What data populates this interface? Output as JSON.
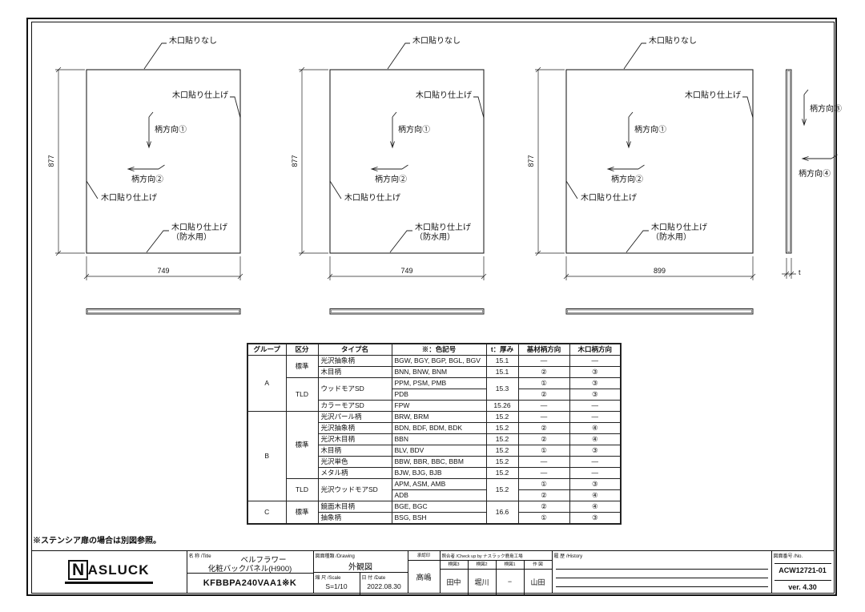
{
  "sheet": {
    "note": "※ステンシア扉の場合は別図参照。"
  },
  "panels": [
    {
      "height": "877",
      "width": "749",
      "edge_top": "木口貼りなし",
      "edge_right": "木口貼り仕上げ",
      "edge_left": "木口貼り仕上げ",
      "edge_bottom": "木口貼り仕上げ",
      "edge_bottom_note": "（防水用）",
      "dir_v": "柄方向①",
      "dir_h": "柄方向②"
    },
    {
      "height": "877",
      "width": "749",
      "edge_top": "木口貼りなし",
      "edge_right": "木口貼り仕上げ",
      "edge_left": "木口貼り仕上げ",
      "edge_bottom": "木口貼り仕上げ",
      "edge_bottom_note": "（防水用）",
      "dir_v": "柄方向①",
      "dir_h": "柄方向②"
    },
    {
      "height": "877",
      "width": "899",
      "edge_top": "木口貼りなし",
      "edge_right": "木口貼り仕上げ",
      "edge_left": "木口貼り仕上げ",
      "edge_bottom": "木口貼り仕上げ",
      "edge_bottom_note": "（防水用）",
      "dir_v": "柄方向①",
      "dir_h": "柄方向②"
    }
  ],
  "side_view": {
    "dir_v": "柄方向③",
    "dir_h": "柄方向④",
    "thickness": "t"
  },
  "spec_table": {
    "headers": [
      "グループ",
      "区分",
      "タイプ名",
      "※：色記号",
      "t：厚み",
      "基材柄方向",
      "木口柄方向"
    ],
    "rows": [
      [
        {
          "t": "A",
          "rs": 5
        },
        {
          "t": "標準",
          "rs": 2
        },
        {
          "t": "光沢抽象柄",
          "al": 1
        },
        {
          "t": "BGW, BGY, BGP, BGL, BGV",
          "al": 1
        },
        {
          "t": "15.1"
        },
        {
          "t": "—"
        },
        {
          "t": "—"
        }
      ],
      [
        {
          "t": "木目柄",
          "al": 1
        },
        {
          "t": "BNN, BNW, BNM",
          "al": 1
        },
        {
          "t": "15.1"
        },
        {
          "t": "②"
        },
        {
          "t": "③"
        }
      ],
      [
        {
          "t": "TLD",
          "rs": 3
        },
        {
          "t": "ウッドモアSD",
          "rs": 2,
          "al": 1
        },
        {
          "t": "PPM, PSM, PMB",
          "al": 1
        },
        {
          "t": "15.3",
          "rs": 2
        },
        {
          "t": "①"
        },
        {
          "t": "③"
        }
      ],
      [
        {
          "t": "PDB",
          "al": 1
        },
        {
          "t": "②"
        },
        {
          "t": "③"
        }
      ],
      [
        {
          "t": "カラーモアSD",
          "al": 1
        },
        {
          "t": "FPW",
          "al": 1
        },
        {
          "t": "15.26"
        },
        {
          "t": "—"
        },
        {
          "t": "—"
        }
      ],
      [
        {
          "t": "B",
          "rs": 8
        },
        {
          "t": "標準",
          "rs": 6
        },
        {
          "t": "光沢パール柄",
          "al": 1
        },
        {
          "t": "BRW, BRM",
          "al": 1
        },
        {
          "t": "15.2"
        },
        {
          "t": "—"
        },
        {
          "t": "—"
        }
      ],
      [
        {
          "t": "光沢抽象柄",
          "al": 1
        },
        {
          "t": "BDN, BDF, BDM, BDK",
          "al": 1
        },
        {
          "t": "15.2"
        },
        {
          "t": "②"
        },
        {
          "t": "④"
        }
      ],
      [
        {
          "t": "光沢木目柄",
          "al": 1
        },
        {
          "t": "BBN",
          "al": 1
        },
        {
          "t": "15.2"
        },
        {
          "t": "②"
        },
        {
          "t": "④"
        }
      ],
      [
        {
          "t": "木目柄",
          "al": 1
        },
        {
          "t": "BLV, BDV",
          "al": 1
        },
        {
          "t": "15.2"
        },
        {
          "t": "①"
        },
        {
          "t": "③"
        }
      ],
      [
        {
          "t": "光沢単色",
          "al": 1
        },
        {
          "t": "BBW, BBR, BBC, BBM",
          "al": 1
        },
        {
          "t": "15.2"
        },
        {
          "t": "—"
        },
        {
          "t": "—"
        }
      ],
      [
        {
          "t": "メタル柄",
          "al": 1
        },
        {
          "t": "BJW, BJG, BJB",
          "al": 1
        },
        {
          "t": "15.2"
        },
        {
          "t": "—"
        },
        {
          "t": "—"
        }
      ],
      [
        {
          "t": "TLD",
          "rs": 2
        },
        {
          "t": "光沢ウッドモアSD",
          "rs": 2,
          "al": 1
        },
        {
          "t": "APM, ASM, AMB",
          "al": 1
        },
        {
          "t": "15.2",
          "rs": 2
        },
        {
          "t": "①"
        },
        {
          "t": "③"
        }
      ],
      [
        {
          "t": "ADB",
          "al": 1
        },
        {
          "t": "②"
        },
        {
          "t": "④"
        }
      ],
      [
        {
          "t": "C",
          "rs": 2
        },
        {
          "t": "標準",
          "rs": 2
        },
        {
          "t": "鏡面木目柄",
          "al": 1
        },
        {
          "t": "BGE, BGC",
          "al": 1
        },
        {
          "t": "16.6",
          "rs": 2
        },
        {
          "t": "②"
        },
        {
          "t": "④"
        }
      ],
      [
        {
          "t": "抽象柄",
          "al": 1
        },
        {
          "t": "BSG, BSH",
          "al": 1
        },
        {
          "t": "①"
        },
        {
          "t": "③"
        }
      ]
    ]
  },
  "title_block": {
    "logo_initial": "N",
    "logo_rest": "ASLUCK",
    "name_label": "名 称 /Title",
    "name_line1": "ベルフラワー",
    "name_line2": "化粧バックパネル(H900)",
    "part_number": "KFBBPA240VAA1※K",
    "drawing_label": "図面種類 /Drawing",
    "drawing_value": "外観図",
    "scale_label": "縮 尺 /Scale",
    "scale_value": "S=1/10",
    "date_label": "日 付 /Date",
    "date_value": "2022.08.30",
    "approval_label": "承認印",
    "approval_value": "高嶋",
    "checkup_label": "照合者 /Check up by ナスラック鹿島工場",
    "check_cols": [
      {
        "label": "検図3",
        "value": "田中"
      },
      {
        "label": "検図2",
        "value": "堀川"
      },
      {
        "label": "検図1",
        "value": "−"
      },
      {
        "label": "作 図",
        "value": "山田"
      }
    ],
    "history_label": "履 歴 /History",
    "number_label": "図面番号 /No.",
    "number_value": "ACW12721-01",
    "version": "ver. 4.30"
  }
}
